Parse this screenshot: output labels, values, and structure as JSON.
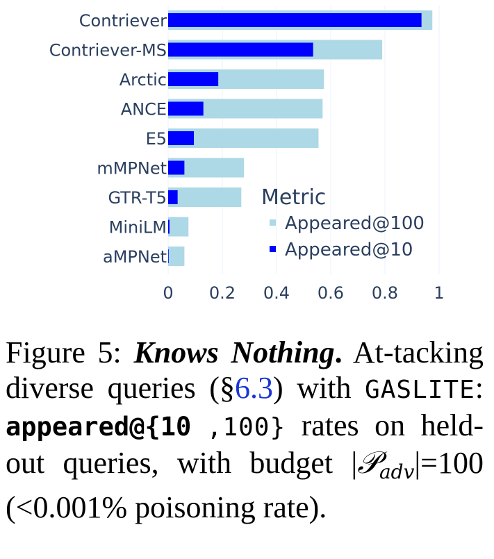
{
  "chart_data": {
    "type": "bar",
    "orientation": "horizontal",
    "categories": [
      "Contriever",
      "Contriever-MS",
      "Arctic",
      "ANCE",
      "E5",
      "mMPNet",
      "GTR-T5",
      "MiniLM",
      "aMPNet"
    ],
    "series": [
      {
        "name": "Appeared@100",
        "color": "#add8e6",
        "values": [
          0.975,
          0.79,
          0.575,
          0.57,
          0.555,
          0.28,
          0.27,
          0.075,
          0.06
        ]
      },
      {
        "name": "Appeared@10",
        "color": "#0000ff",
        "values": [
          0.935,
          0.535,
          0.185,
          0.13,
          0.095,
          0.06,
          0.035,
          0.005,
          0.002
        ]
      }
    ],
    "xlim": [
      0,
      1
    ],
    "xticks": [
      "0",
      "0.2",
      "0.4",
      "0.6",
      "0.8",
      "1"
    ],
    "grid": true,
    "legend": {
      "title": "Metric",
      "placement": "bottom-right"
    }
  },
  "caption": {
    "label": "Figure 5:",
    "title": "Knows Nothing",
    "title_end": ".",
    "text1": "At-tacking diverse queries (§",
    "ref": "6.3",
    "text2": ") with",
    "method": "GASLITE",
    "colon": ":",
    "metric_bold": "appeared@{10",
    "metric_cont": ",100}",
    "text3": "rates on held-out queries, with budget |",
    "symbol": "𝒫",
    "subscript": "adv",
    "text4": "|=100 (<0.001% poisoning rate)."
  }
}
